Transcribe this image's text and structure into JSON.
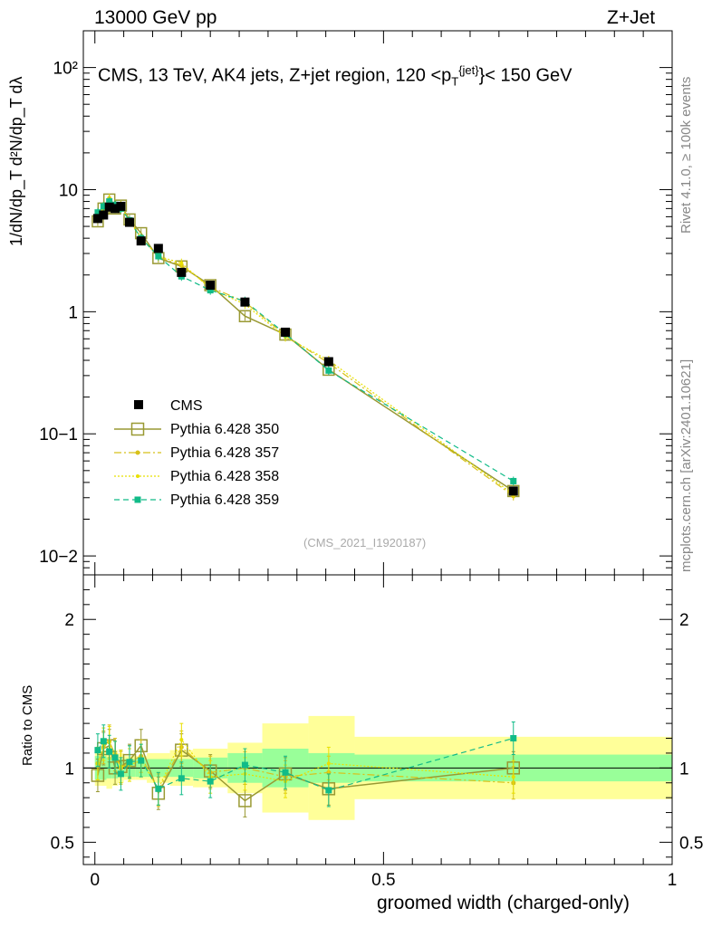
{
  "header": {
    "energy": "13000 GeV pp",
    "process": "Z+Jet"
  },
  "side": {
    "rivet": "Rivet 4.1.0, ≥ 100k events",
    "mcplots": "mcplots.cern.ch [arXiv:2401.10621]"
  },
  "chart_data": {
    "type": "line",
    "title": "CMS, 13 TeV, AK4 jets, Z+jet region, 120 <p",
    "title_sup": "{jet}",
    "title_sub": "T",
    "title_end": "}< 150 GeV",
    "reference": "(CMS_2021_I1920187)",
    "xlabel": "groomed width (charged-only)",
    "ylabel_main": "1/dN/dp_T d²N/dp_T dλ",
    "ylabel_ratio": "Ratio to CMS",
    "xlim": [
      -0.02,
      1.0
    ],
    "ylim_main": [
      0.007,
      200
    ],
    "ylim_ratio": [
      0.35,
      2.3
    ],
    "x_ticks": [
      "0",
      "0.5",
      "1"
    ],
    "y_ticks_main": [
      "10−2",
      "10−1",
      "1",
      "10",
      "10²"
    ],
    "y_ticks_ratio": [
      "0.5",
      "1",
      "2"
    ],
    "x": [
      0.005,
      0.015,
      0.025,
      0.035,
      0.045,
      0.06,
      0.08,
      0.11,
      0.15,
      0.2,
      0.26,
      0.33,
      0.405,
      0.725
    ],
    "data": {
      "name": "CMS",
      "values": [
        5.8,
        6.2,
        7.2,
        7.0,
        7.3,
        5.4,
        3.8,
        3.3,
        2.1,
        1.65,
        1.2,
        0.68,
        0.39,
        0.034
      ]
    },
    "series": [
      {
        "name": "Pythia 6.428 350",
        "color": "#999933",
        "values": [
          5.5,
          7.0,
          8.3,
          7.0,
          7.4,
          5.7,
          4.4,
          2.75,
          2.35,
          1.65,
          0.92,
          0.65,
          0.335,
          0.034
        ],
        "ratio": [
          0.95,
          1.13,
          1.15,
          1.0,
          1.01,
          1.05,
          1.15,
          0.83,
          1.12,
          0.98,
          0.78,
          0.96,
          0.86,
          1.0
        ]
      },
      {
        "name": "Pythia 6.428 357",
        "color": "#d8c11a",
        "values": [
          6.0,
          7.0,
          8.5,
          7.6,
          7.3,
          5.6,
          4.1,
          2.8,
          2.4,
          1.6,
          1.2,
          0.64,
          0.38,
          0.031
        ],
        "ratio": [
          1.03,
          1.14,
          1.18,
          1.09,
          1.0,
          1.04,
          1.08,
          0.85,
          1.14,
          0.97,
          1.0,
          0.94,
          0.97,
          0.9
        ]
      },
      {
        "name": "Pythia 6.428 358",
        "color": "#e8e000",
        "values": [
          6.0,
          7.2,
          8.4,
          7.5,
          7.4,
          5.5,
          4.0,
          2.85,
          2.5,
          1.55,
          1.15,
          0.62,
          0.4,
          0.032
        ],
        "ratio": [
          1.03,
          1.16,
          1.17,
          1.07,
          1.01,
          1.02,
          1.05,
          0.86,
          1.19,
          0.94,
          0.96,
          0.91,
          1.03,
          0.94
        ]
      },
      {
        "name": "Pythia 6.428 359",
        "color": "#11bb88",
        "values": [
          6.5,
          7.3,
          8.0,
          7.5,
          7.0,
          5.6,
          4.0,
          2.85,
          1.95,
          1.5,
          1.22,
          0.66,
          0.33,
          0.041
        ],
        "ratio": [
          1.12,
          1.18,
          1.11,
          1.07,
          0.96,
          1.04,
          1.05,
          0.86,
          0.93,
          0.91,
          1.02,
          0.97,
          0.85,
          1.2
        ]
      }
    ],
    "uncertainty_bands": {
      "edges": [
        0.0,
        0.01,
        0.02,
        0.03,
        0.04,
        0.05,
        0.07,
        0.09,
        0.13,
        0.17,
        0.23,
        0.29,
        0.37,
        0.45,
        1.0
      ],
      "green": [
        0.08,
        0.08,
        0.07,
        0.07,
        0.06,
        0.06,
        0.06,
        0.06,
        0.06,
        0.07,
        0.1,
        0.13,
        0.1,
        0.09
      ],
      "yellow": [
        0.12,
        0.12,
        0.14,
        0.12,
        0.1,
        0.08,
        0.08,
        0.1,
        0.12,
        0.13,
        0.17,
        0.3,
        0.35,
        0.21
      ]
    }
  }
}
